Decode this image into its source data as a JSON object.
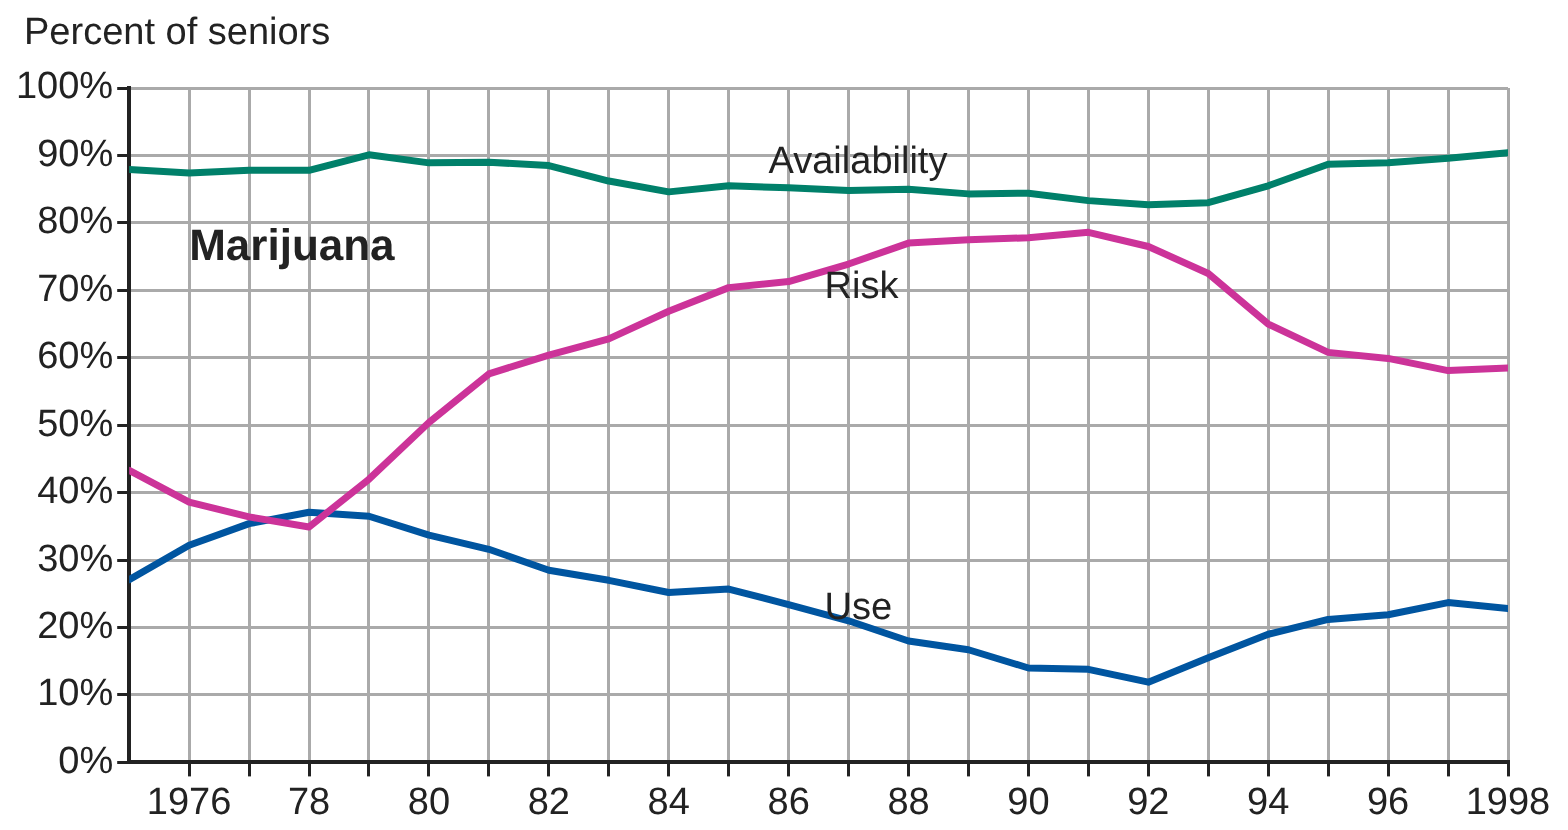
{
  "chart_data": {
    "type": "line",
    "ylabel": "Percent of seniors",
    "annotations": [
      "Marijuana"
    ],
    "x": [
      1975,
      1976,
      1977,
      1978,
      1979,
      1980,
      1981,
      1982,
      1983,
      1984,
      1985,
      1986,
      1987,
      1988,
      1989,
      1990,
      1991,
      1992,
      1993,
      1994,
      1995,
      1996,
      1997,
      1998
    ],
    "series": [
      {
        "name": "Availability",
        "color": "#00806a",
        "values": [
          87.9,
          87.4,
          87.8,
          87.8,
          90.1,
          88.9,
          89.0,
          88.5,
          86.2,
          84.6,
          85.5,
          85.2,
          84.8,
          85.0,
          84.3,
          84.4,
          83.3,
          82.7,
          83.0,
          85.5,
          88.7,
          88.9,
          89.6,
          90.4
        ]
      },
      {
        "name": "Risk",
        "color": "#cc3399",
        "values": [
          43.3,
          38.6,
          36.4,
          34.9,
          42.0,
          50.4,
          57.6,
          60.4,
          62.8,
          66.9,
          70.4,
          71.3,
          73.9,
          77.0,
          77.5,
          77.8,
          78.6,
          76.5,
          72.5,
          65.0,
          60.8,
          59.9,
          58.1,
          58.5
        ]
      },
      {
        "name": "Use",
        "color": "#0055a0",
        "values": [
          27.1,
          32.2,
          35.4,
          37.1,
          36.5,
          33.7,
          31.6,
          28.5,
          27.0,
          25.2,
          25.7,
          23.4,
          21.0,
          18.0,
          16.7,
          14.0,
          13.8,
          11.9,
          15.5,
          19.0,
          21.2,
          21.9,
          23.7,
          22.8
        ]
      }
    ],
    "xlim": [
      1975,
      1998
    ],
    "xticks": [
      {
        "value": 1976,
        "label": "1976"
      },
      {
        "value": 1977,
        "label": null
      },
      {
        "value": 1978,
        "label": "78"
      },
      {
        "value": 1979,
        "label": null
      },
      {
        "value": 1980,
        "label": "80"
      },
      {
        "value": 1981,
        "label": null
      },
      {
        "value": 1982,
        "label": "82"
      },
      {
        "value": 1983,
        "label": null
      },
      {
        "value": 1984,
        "label": "84"
      },
      {
        "value": 1985,
        "label": null
      },
      {
        "value": 1986,
        "label": "86"
      },
      {
        "value": 1987,
        "label": null
      },
      {
        "value": 1988,
        "label": "88"
      },
      {
        "value": 1989,
        "label": null
      },
      {
        "value": 1990,
        "label": "90"
      },
      {
        "value": 1991,
        "label": null
      },
      {
        "value": 1992,
        "label": "92"
      },
      {
        "value": 1993,
        "label": null
      },
      {
        "value": 1994,
        "label": "94"
      },
      {
        "value": 1995,
        "label": null
      },
      {
        "value": 1996,
        "label": "96"
      },
      {
        "value": 1997,
        "label": null
      },
      {
        "value": 1998,
        "label": "1998"
      }
    ],
    "ylim": [
      0,
      100
    ],
    "yticks": [
      {
        "value": 0,
        "label": "0%"
      },
      {
        "value": 10,
        "label": "10%"
      },
      {
        "value": 20,
        "label": "20%"
      },
      {
        "value": 30,
        "label": "30%"
      },
      {
        "value": 40,
        "label": "40%"
      },
      {
        "value": 50,
        "label": "50%"
      },
      {
        "value": 60,
        "label": "60%"
      },
      {
        "value": 70,
        "label": "70%"
      },
      {
        "value": 80,
        "label": "80%"
      },
      {
        "value": 90,
        "label": "90%"
      },
      {
        "value": 100,
        "label": "100%"
      }
    ],
    "grid": true,
    "legend": false,
    "marker": "none",
    "line_style": "solid"
  }
}
